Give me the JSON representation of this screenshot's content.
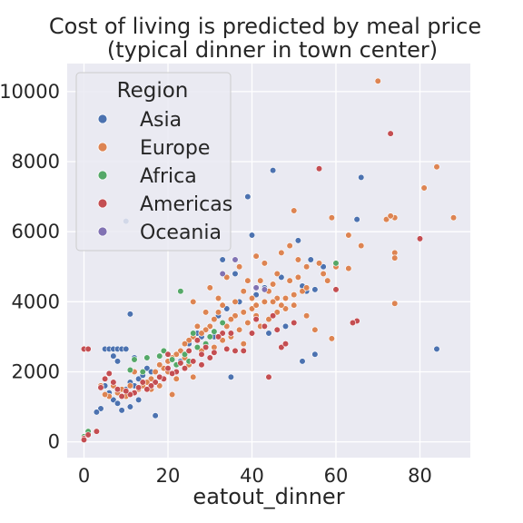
{
  "chart_data": {
    "type": "scatter",
    "title": [
      "Cost of living is predicted by meal price",
      "(typical dinner in town center)"
    ],
    "xlabel": "eatout_dinner",
    "ylabel": "",
    "xlim": [
      -4,
      92
    ],
    "ylim": [
      -450,
      10800
    ],
    "xticks": [
      0,
      20,
      40,
      60,
      80
    ],
    "yticks": [
      0,
      2000,
      4000,
      6000,
      8000,
      10000
    ],
    "grid": true,
    "legend": {
      "title": "Region",
      "placement": "top-left"
    },
    "colors": {
      "Asia": "#4c72b0",
      "Europe": "#dd8452",
      "Africa": "#55a868",
      "Americas": "#c44e52",
      "Oceania": "#8172b3"
    },
    "series": [
      {
        "name": "Asia",
        "points": [
          [
            45,
            7750
          ],
          [
            39,
            7000
          ],
          [
            66,
            7550
          ],
          [
            10,
            6300
          ],
          [
            40,
            5900
          ],
          [
            51,
            5750
          ],
          [
            33,
            5200
          ],
          [
            36,
            4800
          ],
          [
            52,
            4450
          ],
          [
            55,
            4350
          ],
          [
            53,
            4300
          ],
          [
            54,
            5200
          ],
          [
            57,
            5000
          ],
          [
            65,
            6350
          ],
          [
            84,
            2650
          ],
          [
            55,
            2500
          ],
          [
            52,
            2300
          ],
          [
            35,
            1850
          ],
          [
            11,
            3650
          ],
          [
            17,
            750
          ],
          [
            4,
            950
          ],
          [
            3,
            850
          ],
          [
            5,
            2650
          ],
          [
            6,
            2650
          ],
          [
            7,
            2650
          ],
          [
            8,
            2650
          ],
          [
            9,
            2650
          ],
          [
            10,
            2650
          ],
          [
            7,
            2450
          ],
          [
            8,
            2300
          ],
          [
            12,
            2400
          ],
          [
            15,
            2100
          ],
          [
            16,
            2000
          ],
          [
            18,
            2200
          ],
          [
            20,
            2300
          ],
          [
            22,
            2500
          ],
          [
            25,
            2800
          ],
          [
            27,
            3100
          ],
          [
            28,
            3000
          ],
          [
            30,
            3300
          ],
          [
            32,
            3600
          ],
          [
            34,
            3800
          ],
          [
            37,
            4000
          ],
          [
            41,
            4200
          ],
          [
            43,
            4400
          ],
          [
            45,
            4500
          ],
          [
            47,
            4700
          ],
          [
            6,
            1400
          ],
          [
            7,
            1200
          ],
          [
            8,
            1100
          ],
          [
            9,
            1300
          ],
          [
            10,
            1500
          ],
          [
            11,
            1700
          ],
          [
            12,
            1600
          ],
          [
            13,
            1800
          ],
          [
            14,
            1900
          ],
          [
            15,
            1700
          ],
          [
            5,
            1600
          ],
          [
            9,
            900
          ],
          [
            11,
            1000
          ],
          [
            13,
            1200
          ],
          [
            19,
            2100
          ],
          [
            23,
            2300
          ],
          [
            48,
            3300
          ],
          [
            44,
            3100
          ],
          [
            29,
            3200
          ],
          [
            31,
            3000
          ]
        ]
      },
      {
        "name": "Europe",
        "points": [
          [
            70,
            10300
          ],
          [
            84,
            7850
          ],
          [
            81,
            7250
          ],
          [
            72,
            6350
          ],
          [
            74,
            6400
          ],
          [
            88,
            6400
          ],
          [
            73,
            6450
          ],
          [
            63,
            5900
          ],
          [
            59,
            6400
          ],
          [
            50,
            6600
          ],
          [
            66,
            5600
          ],
          [
            74,
            5400
          ],
          [
            74,
            5250
          ],
          [
            74,
            3950
          ],
          [
            63,
            4950
          ],
          [
            60,
            5000
          ],
          [
            57,
            4800
          ],
          [
            58,
            4600
          ],
          [
            59,
            2950
          ],
          [
            55,
            3200
          ],
          [
            53,
            3600
          ],
          [
            50,
            3900
          ],
          [
            48,
            4100
          ],
          [
            45,
            4500
          ],
          [
            43,
            4000
          ],
          [
            40,
            3800
          ],
          [
            38,
            4300
          ],
          [
            36,
            3600
          ],
          [
            35,
            3500
          ],
          [
            33,
            3900
          ],
          [
            32,
            4100
          ],
          [
            31,
            3500
          ],
          [
            30,
            3300
          ],
          [
            29,
            3200
          ],
          [
            28,
            3100
          ],
          [
            27,
            3300
          ],
          [
            26,
            3000
          ],
          [
            25,
            2900
          ],
          [
            24,
            2800
          ],
          [
            23,
            2600
          ],
          [
            22,
            2500
          ],
          [
            21,
            2400
          ],
          [
            20,
            2300
          ],
          [
            19,
            2100
          ],
          [
            18,
            2200
          ],
          [
            17,
            2000
          ],
          [
            16,
            1800
          ],
          [
            15,
            1700
          ],
          [
            14,
            1600
          ],
          [
            13,
            1500
          ],
          [
            12,
            1400
          ],
          [
            11,
            1600
          ],
          [
            10,
            1300
          ],
          [
            9,
            1500
          ],
          [
            8,
            1400
          ],
          [
            7,
            1600
          ],
          [
            6,
            1300
          ],
          [
            5,
            1350
          ],
          [
            4,
            1600
          ],
          [
            21,
            1350
          ],
          [
            22,
            1800
          ],
          [
            26,
            1850
          ],
          [
            26,
            4000
          ],
          [
            30,
            4400
          ],
          [
            34,
            4700
          ],
          [
            37,
            5000
          ],
          [
            39,
            4600
          ],
          [
            41,
            5300
          ],
          [
            43,
            5100
          ],
          [
            46,
            4800
          ],
          [
            47,
            5400
          ],
          [
            49,
            5600
          ],
          [
            51,
            5200
          ],
          [
            53,
            5000
          ],
          [
            56,
            5100
          ],
          [
            42,
            3300
          ],
          [
            44,
            3500
          ],
          [
            46,
            3700
          ],
          [
            48,
            3800
          ],
          [
            35,
            3000
          ],
          [
            37,
            3200
          ],
          [
            39,
            3400
          ],
          [
            41,
            3600
          ],
          [
            43,
            3300
          ],
          [
            31,
            2700
          ],
          [
            33,
            2900
          ],
          [
            28,
            2600
          ],
          [
            24,
            2400
          ],
          [
            25,
            2200
          ],
          [
            20,
            2000
          ],
          [
            18,
            1600
          ],
          [
            16,
            1500
          ],
          [
            12,
            2000
          ],
          [
            27,
            2900
          ],
          [
            29,
            3700
          ],
          [
            40,
            4100
          ],
          [
            44,
            4300
          ],
          [
            46,
            4100
          ],
          [
            50,
            4200
          ],
          [
            52,
            4300
          ],
          [
            36,
            4000
          ],
          [
            32,
            3700
          ],
          [
            34,
            3300
          ],
          [
            38,
            3700
          ],
          [
            41,
            3900
          ],
          [
            45,
            4000
          ],
          [
            47,
            3900
          ],
          [
            49,
            4600
          ],
          [
            51,
            4700
          ],
          [
            53,
            4400
          ],
          [
            38,
            2800
          ],
          [
            42,
            4600
          ]
        ]
      },
      {
        "name": "Africa",
        "points": [
          [
            1,
            300
          ],
          [
            0,
            150
          ],
          [
            12,
            2350
          ],
          [
            15,
            2400
          ],
          [
            18,
            2450
          ],
          [
            21,
            2350
          ],
          [
            24,
            2500
          ],
          [
            26,
            3100
          ],
          [
            33,
            3400
          ],
          [
            30,
            3000
          ],
          [
            27,
            2700
          ],
          [
            22,
            2200
          ],
          [
            14,
            2000
          ],
          [
            60,
            5100
          ],
          [
            11,
            2050
          ],
          [
            25,
            2300
          ],
          [
            19,
            2600
          ],
          [
            29,
            2800
          ],
          [
            23,
            4300
          ],
          [
            31,
            3150
          ]
        ]
      },
      {
        "name": "Americas",
        "points": [
          [
            73,
            8800
          ],
          [
            56,
            7800
          ],
          [
            80,
            5800
          ],
          [
            65,
            3450
          ],
          [
            64,
            3400
          ],
          [
            60,
            4350
          ],
          [
            44,
            1850
          ],
          [
            47,
            2700
          ],
          [
            48,
            2800
          ],
          [
            38,
            2600
          ],
          [
            36,
            2600
          ],
          [
            34,
            2650
          ],
          [
            33,
            3100
          ],
          [
            31,
            2550
          ],
          [
            29,
            2700
          ],
          [
            28,
            2500
          ],
          [
            27,
            2900
          ],
          [
            26,
            2300
          ],
          [
            25,
            2600
          ],
          [
            24,
            2100
          ],
          [
            23,
            2250
          ],
          [
            22,
            2000
          ],
          [
            21,
            1950
          ],
          [
            20,
            2100
          ],
          [
            19,
            1800
          ],
          [
            18,
            1850
          ],
          [
            17,
            1700
          ],
          [
            16,
            1600
          ],
          [
            15,
            1500
          ],
          [
            14,
            1700
          ],
          [
            13,
            1550
          ],
          [
            12,
            1400
          ],
          [
            11,
            1350
          ],
          [
            10,
            1450
          ],
          [
            9,
            1300
          ],
          [
            8,
            1500
          ],
          [
            7,
            1700
          ],
          [
            6,
            1950
          ],
          [
            5,
            1800
          ],
          [
            4,
            1550
          ],
          [
            3,
            300
          ],
          [
            0,
            2650
          ],
          [
            1,
            2650
          ],
          [
            0,
            100
          ],
          [
            1,
            200
          ],
          [
            0,
            60
          ],
          [
            41,
            3500
          ],
          [
            43,
            3300
          ],
          [
            45,
            3600
          ],
          [
            46,
            3200
          ],
          [
            40,
            3100
          ],
          [
            35,
            3100
          ],
          [
            32,
            3000
          ],
          [
            30,
            2400
          ],
          [
            28,
            2200
          ],
          [
            50,
            3400
          ],
          [
            20,
            2500
          ]
        ]
      },
      {
        "name": "Oceania",
        "points": [
          [
            33,
            4800
          ],
          [
            36,
            5200
          ],
          [
            41,
            4400
          ],
          [
            43,
            4350
          ]
        ]
      }
    ]
  }
}
